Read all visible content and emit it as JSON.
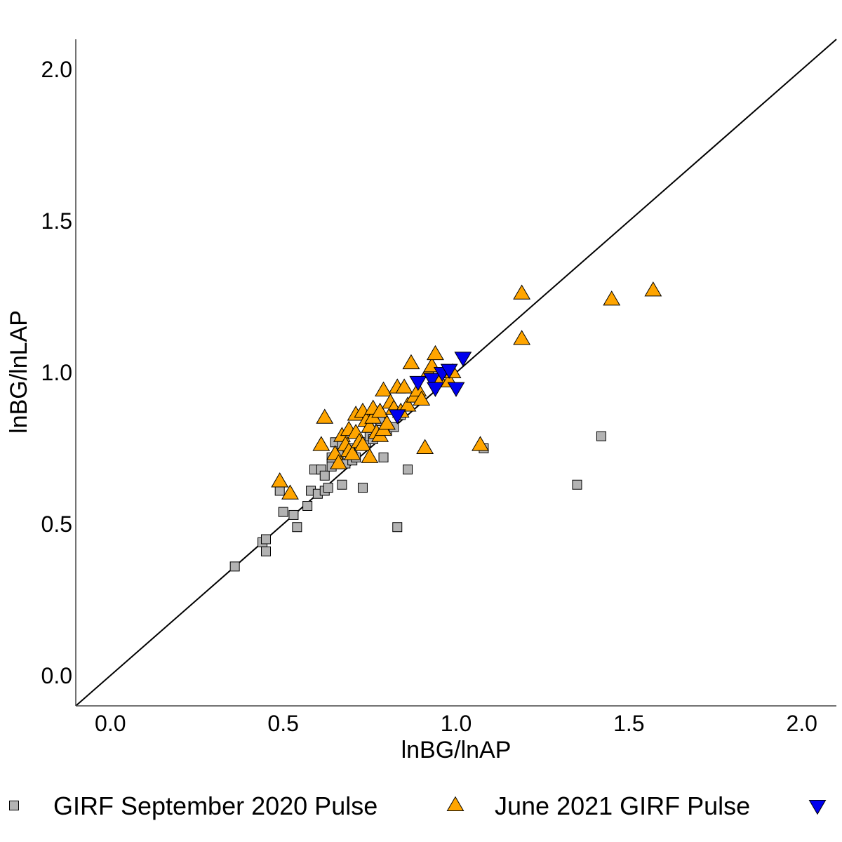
{
  "chart_data": {
    "type": "scatter",
    "xlabel": "lnBG/lnAP",
    "ylabel": "lnBG/lnLAP",
    "xlim": [
      -0.1,
      2.1
    ],
    "ylim": [
      -0.1,
      2.1
    ],
    "x_ticks": [
      "0.0",
      "0.5",
      "1.0",
      "1.5",
      "2.0"
    ],
    "y_ticks": [
      "0.0",
      "0.5",
      "1.0",
      "1.5",
      "2.0"
    ],
    "grid": false,
    "reference_line": "y = x",
    "legend_position": "bottom",
    "series": [
      {
        "name": "GIRF September 2020 Pulse",
        "marker": "square",
        "color": "#b3b3b3",
        "points": [
          [
            0.36,
            0.36
          ],
          [
            0.44,
            0.44
          ],
          [
            0.45,
            0.45
          ],
          [
            0.45,
            0.41
          ],
          [
            0.49,
            0.61
          ],
          [
            0.5,
            0.54
          ],
          [
            0.53,
            0.53
          ],
          [
            0.54,
            0.49
          ],
          [
            0.57,
            0.56
          ],
          [
            0.58,
            0.61
          ],
          [
            0.59,
            0.68
          ],
          [
            0.6,
            0.6
          ],
          [
            0.61,
            0.68
          ],
          [
            0.62,
            0.61
          ],
          [
            0.62,
            0.66
          ],
          [
            0.63,
            0.62
          ],
          [
            0.64,
            0.69
          ],
          [
            0.64,
            0.72
          ],
          [
            0.65,
            0.77
          ],
          [
            0.66,
            0.73
          ],
          [
            0.67,
            0.76
          ],
          [
            0.67,
            0.63
          ],
          [
            0.68,
            0.7
          ],
          [
            0.69,
            0.74
          ],
          [
            0.7,
            0.75
          ],
          [
            0.7,
            0.71
          ],
          [
            0.71,
            0.72
          ],
          [
            0.72,
            0.76
          ],
          [
            0.73,
            0.62
          ],
          [
            0.74,
            0.77
          ],
          [
            0.75,
            0.79
          ],
          [
            0.76,
            0.78
          ],
          [
            0.77,
            0.8
          ],
          [
            0.78,
            0.84
          ],
          [
            0.79,
            0.72
          ],
          [
            0.8,
            0.81
          ],
          [
            0.82,
            0.82
          ],
          [
            0.83,
            0.49
          ],
          [
            0.84,
            0.86
          ],
          [
            0.86,
            0.68
          ],
          [
            1.08,
            0.75
          ],
          [
            1.35,
            0.63
          ],
          [
            1.42,
            0.79
          ]
        ]
      },
      {
        "name": "June 2021 GIRF Pulse",
        "marker": "triangle-up",
        "color": "#ffa500",
        "points": [
          [
            0.49,
            0.64
          ],
          [
            0.52,
            0.6
          ],
          [
            0.61,
            0.76
          ],
          [
            0.62,
            0.85
          ],
          [
            0.65,
            0.73
          ],
          [
            0.66,
            0.7
          ],
          [
            0.67,
            0.79
          ],
          [
            0.68,
            0.76
          ],
          [
            0.69,
            0.81
          ],
          [
            0.69,
            0.74
          ],
          [
            0.7,
            0.73
          ],
          [
            0.71,
            0.8
          ],
          [
            0.71,
            0.86
          ],
          [
            0.72,
            0.77
          ],
          [
            0.73,
            0.76
          ],
          [
            0.73,
            0.87
          ],
          [
            0.74,
            0.84
          ],
          [
            0.75,
            0.72
          ],
          [
            0.75,
            0.82
          ],
          [
            0.76,
            0.85
          ],
          [
            0.76,
            0.88
          ],
          [
            0.77,
            0.8
          ],
          [
            0.78,
            0.79
          ],
          [
            0.78,
            0.87
          ],
          [
            0.79,
            0.94
          ],
          [
            0.79,
            0.81
          ],
          [
            0.8,
            0.83
          ],
          [
            0.81,
            0.9
          ],
          [
            0.82,
            0.88
          ],
          [
            0.83,
            0.95
          ],
          [
            0.84,
            0.87
          ],
          [
            0.85,
            0.95
          ],
          [
            0.86,
            0.89
          ],
          [
            0.87,
            1.03
          ],
          [
            0.88,
            0.92
          ],
          [
            0.89,
            0.94
          ],
          [
            0.9,
            0.91
          ],
          [
            0.91,
            0.75
          ],
          [
            0.92,
            1.0
          ],
          [
            0.93,
            1.02
          ],
          [
            0.94,
            1.06
          ],
          [
            0.95,
            0.98
          ],
          [
            0.98,
            0.97
          ],
          [
            0.99,
            1.0
          ],
          [
            1.07,
            0.76
          ],
          [
            1.19,
            1.26
          ],
          [
            1.19,
            1.11
          ],
          [
            1.45,
            1.24
          ],
          [
            1.57,
            1.27
          ]
        ]
      },
      {
        "name": "",
        "marker": "triangle-down",
        "color": "#0000ee",
        "points": [
          [
            0.83,
            0.86
          ],
          [
            0.89,
            0.97
          ],
          [
            0.93,
            0.98
          ],
          [
            0.94,
            0.95
          ],
          [
            0.96,
            1.0
          ],
          [
            0.98,
            1.01
          ],
          [
            1.0,
            0.95
          ],
          [
            1.02,
            1.05
          ]
        ]
      }
    ]
  }
}
